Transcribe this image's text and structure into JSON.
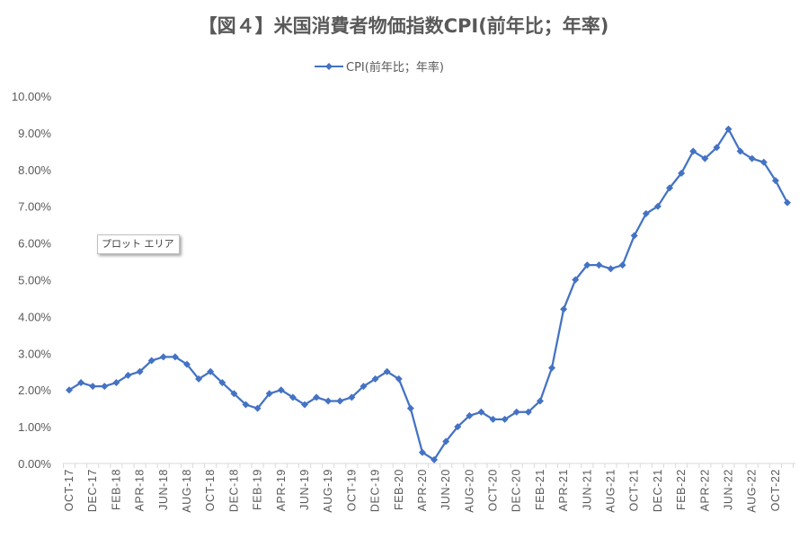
{
  "chart_data": {
    "type": "line",
    "title": "【図４】米国消費者物価指数CPI(前年比；年率)",
    "xlabel": "",
    "ylabel": "",
    "ylim": [
      0,
      10
    ],
    "y_ticks": [
      0,
      1,
      2,
      3,
      4,
      5,
      6,
      7,
      8,
      9,
      10
    ],
    "y_tick_labels": [
      "0.00%",
      "1.00%",
      "2.00%",
      "3.00%",
      "4.00%",
      "5.00%",
      "6.00%",
      "7.00%",
      "8.00%",
      "9.00%",
      "10.00%"
    ],
    "grid": false,
    "legend_position": "top-center",
    "x": [
      "OCT-17",
      "NOV-17",
      "DEC-17",
      "JAN-18",
      "FEB-18",
      "MAR-18",
      "APR-18",
      "MAY-18",
      "JUN-18",
      "JUL-18",
      "AUG-18",
      "SEP-18",
      "OCT-18",
      "NOV-18",
      "DEC-18",
      "JAN-19",
      "FEB-19",
      "MAR-19",
      "APR-19",
      "MAY-19",
      "JUN-19",
      "JUL-19",
      "AUG-19",
      "SEP-19",
      "OCT-19",
      "NOV-19",
      "DEC-19",
      "JAN-20",
      "FEB-20",
      "MAR-20",
      "APR-20",
      "MAY-20",
      "JUN-20",
      "JUL-20",
      "AUG-20",
      "SEP-20",
      "OCT-20",
      "NOV-20",
      "DEC-20",
      "JAN-21",
      "FEB-21",
      "MAR-21",
      "APR-21",
      "MAY-21",
      "JUN-21",
      "JUL-21",
      "AUG-21",
      "SEP-21",
      "OCT-21",
      "NOV-21",
      "DEC-21",
      "JAN-22",
      "FEB-22",
      "MAR-22",
      "APR-22",
      "MAY-22",
      "JUN-22",
      "JUL-22",
      "AUG-22",
      "SEP-22",
      "OCT-22",
      "NOV-22"
    ],
    "x_tick_labels": [
      "OCT-17",
      "DEC-17",
      "FEB-18",
      "APR-18",
      "JUN-18",
      "AUG-18",
      "OCT-18",
      "DEC-18",
      "FEB-19",
      "APR-19",
      "JUN-19",
      "AUG-19",
      "OCT-19",
      "DEC-19",
      "FEB-20",
      "APR-20",
      "JUN-20",
      "AUG-20",
      "OCT-20",
      "DEC-20",
      "FEB-21",
      "APR-21",
      "JUN-21",
      "AUG-21",
      "OCT-21",
      "DEC-21",
      "FEB-22",
      "APR-22",
      "JUN-22",
      "AUG-22",
      "OCT-22"
    ],
    "series": [
      {
        "name": "CPI(前年比；年率)",
        "color": "#4472c4",
        "marker": "diamond",
        "values": [
          2.0,
          2.2,
          2.1,
          2.1,
          2.2,
          2.4,
          2.5,
          2.8,
          2.9,
          2.9,
          2.7,
          2.3,
          2.5,
          2.2,
          1.9,
          1.6,
          1.5,
          1.9,
          2.0,
          1.8,
          1.6,
          1.8,
          1.7,
          1.7,
          1.8,
          2.1,
          2.3,
          2.5,
          2.3,
          1.5,
          0.3,
          0.1,
          0.6,
          1.0,
          1.3,
          1.4,
          1.2,
          1.2,
          1.4,
          1.4,
          1.7,
          2.6,
          4.2,
          5.0,
          5.4,
          5.4,
          5.3,
          5.4,
          6.2,
          6.8,
          7.0,
          7.5,
          7.9,
          8.5,
          8.3,
          8.6,
          9.1,
          8.5,
          8.3,
          8.2,
          7.7,
          7.1
        ]
      }
    ]
  },
  "overlay": {
    "tooltip_text": "プロット エリア"
  }
}
